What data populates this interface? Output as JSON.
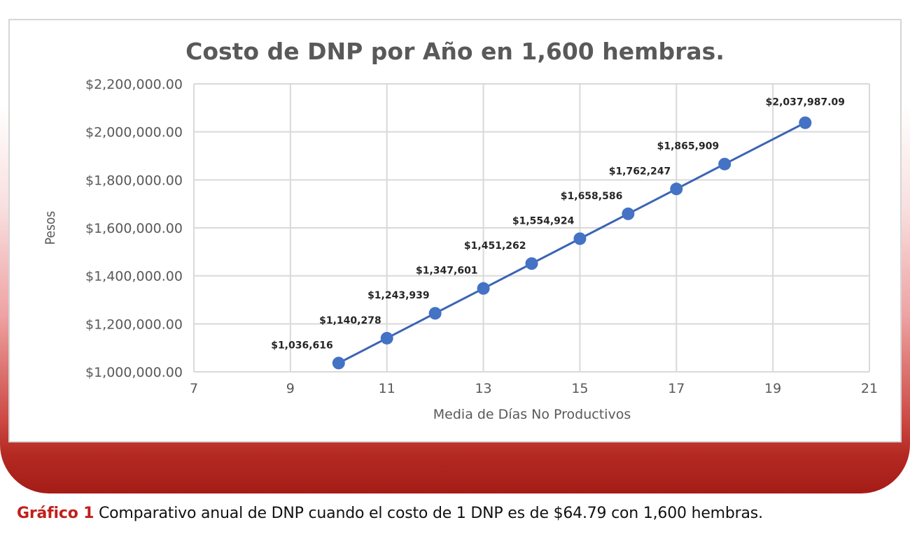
{
  "caption": {
    "label": "Gráfico 1",
    "text": "Comparativo anual de DNP cuando el costo de 1 DNP es de $64.79 con 1,600 hembras."
  },
  "colors": {
    "series": "#4472c4",
    "line": "#3c64b4",
    "grid": "#d9d9d9",
    "axis_text": "#595959",
    "title_text": "#595959",
    "accent": "#c0201c"
  },
  "chart_data": {
    "type": "scatter",
    "title": "Costo de DNP por Año en 1,600 hembras.",
    "xlabel": "Media de Días No Productivos",
    "ylabel": "Pesos",
    "xlim": [
      7,
      21
    ],
    "ylim": [
      1000000,
      2200000
    ],
    "x_ticks": [
      7,
      9,
      11,
      13,
      15,
      17,
      19,
      21
    ],
    "y_ticks": [
      1000000,
      1200000,
      1400000,
      1600000,
      1800000,
      2000000,
      2200000
    ],
    "y_tick_labels": [
      "$1,000,000.00",
      "$1,200,000.00",
      "$1,400,000.00",
      "$1,600,000.00",
      "$1,800,000.00",
      "$2,000,000.00",
      "$2,200,000.00"
    ],
    "grid": true,
    "legend": "none",
    "series": [
      {
        "x": [
          10,
          11,
          12,
          13,
          14,
          15,
          16,
          17,
          18,
          19.67
        ],
        "y": [
          1036616,
          1140278,
          1243939,
          1347601,
          1451262,
          1554924,
          1658586,
          1762247,
          1865909,
          2037987.09
        ],
        "labels": [
          "$1,036,616",
          "$1,140,278",
          "$1,243,939",
          "$1,347,601",
          "$1,451,262",
          "$1,554,924",
          "$1,658,586",
          "$1,762,247",
          "$1,865,909",
          "$2,037,987.09"
        ]
      }
    ]
  }
}
